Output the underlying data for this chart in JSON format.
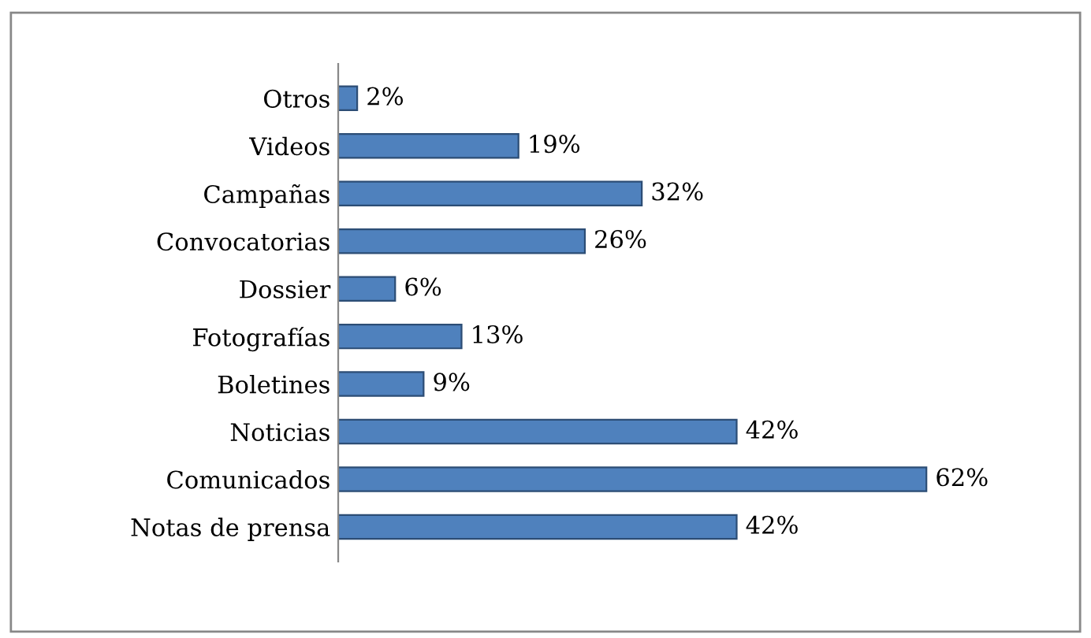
{
  "chart_data": {
    "type": "bar",
    "orientation": "horizontal",
    "categories": [
      "Otros",
      "Videos",
      "Campañas",
      "Convocatorias",
      "Dossier",
      "Fotografías",
      "Boletines",
      "Noticias",
      "Comunicados",
      "Notas de prensa"
    ],
    "values": [
      2,
      19,
      32,
      26,
      6,
      13,
      9,
      42,
      62,
      42
    ],
    "value_labels": [
      "2%",
      "19%",
      "32%",
      "26%",
      "6%",
      "13%",
      "9%",
      "42%",
      "62%",
      "42%"
    ],
    "color": "#4f81bd",
    "grid": false,
    "legend": false
  }
}
